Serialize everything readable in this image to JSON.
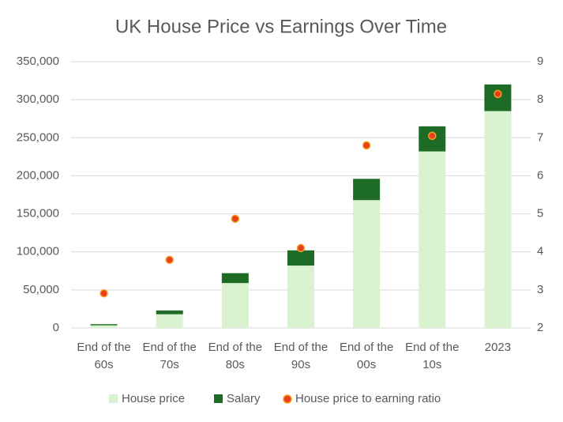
{
  "chart_data": {
    "type": "bar",
    "title": "UK House Price vs Earnings Over Time",
    "categories": [
      "End of the\n60s",
      "End of the\n70s",
      "End of the\n80s",
      "End of the\n90s",
      "End of the\n00s",
      "End of the\n10s",
      "2023"
    ],
    "series": [
      {
        "name": "House price",
        "type": "bar",
        "color": "#d9f2d0",
        "values": [
          3500,
          18000,
          59000,
          82000,
          168000,
          232000,
          285000
        ]
      },
      {
        "name": "Salary",
        "type": "bar",
        "color": "#1e6b25",
        "values": [
          1500,
          5000,
          13000,
          20000,
          28000,
          33000,
          35000
        ]
      },
      {
        "name": "House price to earning ratio",
        "type": "scatter",
        "axis": "y2",
        "color": "#e8401c",
        "values": [
          2.91,
          3.79,
          4.87,
          4.1,
          6.8,
          7.05,
          8.15
        ]
      }
    ],
    "stacked": true,
    "ylim": [
      0,
      350000
    ],
    "yticks": [
      0,
      {
        "value": 50000,
        "label": "50,000"
      },
      {
        "value": 100000,
        "label": "100,000"
      },
      {
        "value": 150000,
        "label": "150,000"
      },
      {
        "value": 200000,
        "label": "200,000"
      },
      {
        "value": 250000,
        "label": "250,000"
      },
      {
        "value": 300000,
        "label": "300,000"
      },
      {
        "value": 350000,
        "label": "350,000"
      }
    ],
    "y2lim": [
      2,
      9
    ],
    "y2ticks": [
      2,
      3,
      4,
      5,
      6,
      7,
      8,
      9
    ],
    "grid": true,
    "legend": "bottom"
  }
}
